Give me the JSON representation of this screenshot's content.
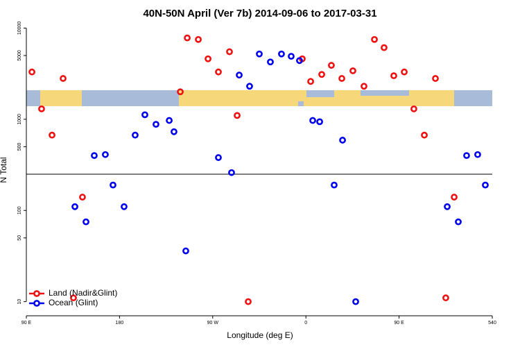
{
  "chart_data": {
    "type": "scatter",
    "title": "40N-50N April (Ver 7b)   2014-09-06 to 2017-03-31",
    "xlabel": "Longitude (deg E)",
    "ylabel": "N Total",
    "ylog": true,
    "xlim": [
      90,
      540
    ],
    "ylim": [
      7,
      11000
    ],
    "xticks": [
      {
        "value": 90,
        "label": "90 E"
      },
      180,
      {
        "value": 270,
        "label": "90 W"
      },
      {
        "value": 360,
        "label": "0"
      },
      {
        "value": 450,
        "label": "90 E"
      },
      540
    ],
    "yticks": [
      10,
      50,
      100,
      500,
      1000,
      5000,
      10000
    ],
    "hline": 250,
    "legend": "bottom-left",
    "series": [
      {
        "name": "Land (Nadir&Glint)",
        "color": "#ee1111",
        "x": [
          95.4,
          104.7,
          114.8,
          125.5,
          135.5,
          144.2,
          238.7,
          245.4,
          256.1,
          265.5,
          275.5,
          286.2,
          293.6,
          304.3,
          356.5,
          364.6,
          375.3,
          384.6,
          394.7,
          405.4,
          416.1,
          426.2,
          435.5,
          444.9,
          455,
          464.3,
          474.4,
          485.1,
          495.1,
          503.2
        ],
        "values": [
          3300,
          1300,
          670,
          2800,
          11,
          140,
          2000,
          7800,
          7500,
          4600,
          3300,
          5500,
          1100,
          10,
          4600,
          2600,
          3100,
          3900,
          2800,
          3400,
          2300,
          7500,
          6100,
          3000,
          3300,
          1300,
          670,
          2800,
          11,
          140
        ]
      },
      {
        "name": "Ocean (Glint)",
        "color": "#0000ee",
        "x": [
          136.9,
          147.6,
          155.6,
          166.3,
          173.7,
          184.4,
          195.1,
          204.5,
          215.2,
          228,
          232.6,
          244,
          275.5,
          288.2,
          295.6,
          305.6,
          315,
          325.7,
          336.4,
          345.8,
          353.8,
          366.6,
          373.3,
          395.4,
          387.3,
          408.1,
          496.5,
          507.2,
          515.2,
          525.9,
          533.3
        ],
        "values": [
          110,
          75,
          400,
          410,
          190,
          110,
          670,
          1120,
          880,
          970,
          730,
          36,
          380,
          260,
          3050,
          2300,
          5200,
          4250,
          5200,
          4900,
          4400,
          970,
          940,
          590,
          190,
          10,
          110,
          75,
          400,
          410,
          190
        ]
      }
    ]
  }
}
